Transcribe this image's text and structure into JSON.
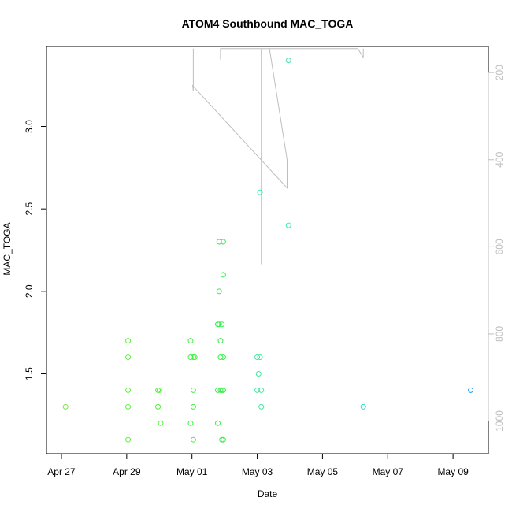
{
  "chart_data": {
    "type": "scatter",
    "title": "ATOM4 Southbound MAC_TOGA",
    "xlabel": "Date",
    "ylabel": "MAC_TOGA",
    "xlim": [
      "2017-04-26T13:00",
      "2017-05-10T02:00"
    ],
    "ylim": [
      1.015,
      3.485
    ],
    "y2lim": [
      1075,
      140
    ],
    "x_ticks": [
      {
        "date": "2017-04-27",
        "label": "Apr 27"
      },
      {
        "date": "2017-04-29",
        "label": "Apr 29"
      },
      {
        "date": "2017-05-01",
        "label": "May 01"
      },
      {
        "date": "2017-05-03",
        "label": "May 03"
      },
      {
        "date": "2017-05-05",
        "label": "May 05"
      },
      {
        "date": "2017-05-07",
        "label": "May 07"
      },
      {
        "date": "2017-05-09",
        "label": "May 09"
      }
    ],
    "y_ticks": [
      {
        "value": 1.5,
        "label": "1.5"
      },
      {
        "value": 2.0,
        "label": "2.0"
      },
      {
        "value": 2.5,
        "label": "2.5"
      },
      {
        "value": 3.0,
        "label": "3.0"
      }
    ],
    "y2_ticks": [
      {
        "value": 200,
        "label": "200"
      },
      {
        "value": 400,
        "label": "400"
      },
      {
        "value": 600,
        "label": "600"
      },
      {
        "value": 800,
        "label": "800"
      },
      {
        "value": 1000,
        "label": "1000"
      }
    ],
    "grid": false,
    "legend": "none",
    "colors": {
      "secondary_line": "#bebebe",
      "axis": "#000000",
      "secondary_axis": "#bebebe"
    },
    "points": [
      {
        "x": "2017-04-27T03:00",
        "y": 1.3,
        "color": "#7ee64f"
      },
      {
        "x": "2017-04-29T01:00",
        "y": 1.7,
        "color": "#5ff03c"
      },
      {
        "x": "2017-04-29T01:00",
        "y": 1.6,
        "color": "#5ff03c"
      },
      {
        "x": "2017-04-29T01:00",
        "y": 1.4,
        "color": "#5ff03c"
      },
      {
        "x": "2017-04-29T01:00",
        "y": 1.3,
        "color": "#5ff03c"
      },
      {
        "x": "2017-04-29T01:00",
        "y": 1.1,
        "color": "#5ff03c"
      },
      {
        "x": "2017-04-29T23:00",
        "y": 1.4,
        "color": "#4cf232"
      },
      {
        "x": "2017-04-30T00:00",
        "y": 1.4,
        "color": "#4cf232"
      },
      {
        "x": "2017-04-29T23:00",
        "y": 1.3,
        "color": "#4cf232"
      },
      {
        "x": "2017-04-30T01:00",
        "y": 1.2,
        "color": "#4cf232"
      },
      {
        "x": "2017-04-30T23:00",
        "y": 1.7,
        "color": "#3cf43c"
      },
      {
        "x": "2017-04-30T23:00",
        "y": 1.6,
        "color": "#3cf43c"
      },
      {
        "x": "2017-05-01T01:00",
        "y": 1.6,
        "color": "#3cf43c"
      },
      {
        "x": "2017-05-01T02:00",
        "y": 1.6,
        "color": "#3cf43c"
      },
      {
        "x": "2017-05-01T01:00",
        "y": 1.4,
        "color": "#3cf43c"
      },
      {
        "x": "2017-05-01T01:00",
        "y": 1.3,
        "color": "#3cf43c"
      },
      {
        "x": "2017-04-30T23:00",
        "y": 1.2,
        "color": "#3cf43c"
      },
      {
        "x": "2017-05-01T01:00",
        "y": 1.1,
        "color": "#3cf43c"
      },
      {
        "x": "2017-05-01T20:00",
        "y": 2.3,
        "color": "#32f048"
      },
      {
        "x": "2017-05-01T23:00",
        "y": 2.3,
        "color": "#32f048"
      },
      {
        "x": "2017-05-01T23:00",
        "y": 2.1,
        "color": "#32f048"
      },
      {
        "x": "2017-05-01T20:00",
        "y": 2.0,
        "color": "#32f048"
      },
      {
        "x": "2017-05-01T19:00",
        "y": 1.8,
        "color": "#32f048"
      },
      {
        "x": "2017-05-01T20:00",
        "y": 1.8,
        "color": "#32f048"
      },
      {
        "x": "2017-05-01T22:00",
        "y": 1.8,
        "color": "#32f048"
      },
      {
        "x": "2017-05-01T21:00",
        "y": 1.7,
        "color": "#32f048"
      },
      {
        "x": "2017-05-01T21:00",
        "y": 1.6,
        "color": "#32f048"
      },
      {
        "x": "2017-05-01T23:00",
        "y": 1.6,
        "color": "#32f048"
      },
      {
        "x": "2017-05-01T19:00",
        "y": 1.4,
        "color": "#32f048"
      },
      {
        "x": "2017-05-01T21:00",
        "y": 1.4,
        "color": "#32f048"
      },
      {
        "x": "2017-05-01T22:00",
        "y": 1.4,
        "color": "#32f048"
      },
      {
        "x": "2017-05-01T23:00",
        "y": 1.4,
        "color": "#32f048"
      },
      {
        "x": "2017-05-01T19:00",
        "y": 1.2,
        "color": "#32f048"
      },
      {
        "x": "2017-05-01T22:00",
        "y": 1.1,
        "color": "#32f048"
      },
      {
        "x": "2017-05-01T23:00",
        "y": 1.1,
        "color": "#32f048"
      },
      {
        "x": "2017-05-03T02:00",
        "y": 2.6,
        "color": "#3ceca0"
      },
      {
        "x": "2017-05-03T00:00",
        "y": 1.6,
        "color": "#3ceca0"
      },
      {
        "x": "2017-05-03T02:00",
        "y": 1.6,
        "color": "#3ceca0"
      },
      {
        "x": "2017-05-03T01:00",
        "y": 1.5,
        "color": "#3ceca0"
      },
      {
        "x": "2017-05-03T00:00",
        "y": 1.4,
        "color": "#3ceca0"
      },
      {
        "x": "2017-05-03T03:00",
        "y": 1.4,
        "color": "#3ceca0"
      },
      {
        "x": "2017-05-03T03:00",
        "y": 1.3,
        "color": "#3ceca0"
      },
      {
        "x": "2017-05-03T23:00",
        "y": 3.4,
        "color": "#3ce8b8"
      },
      {
        "x": "2017-05-03T23:00",
        "y": 2.4,
        "color": "#3ce8b8"
      },
      {
        "x": "2017-05-06T06:00",
        "y": 1.3,
        "color": "#28dcc8"
      },
      {
        "x": "2017-05-09T13:00",
        "y": 1.4,
        "color": "#1e96f0"
      }
    ],
    "secondary_line": [
      {
        "x": "2017-05-01T01:00",
        "y2": 145
      },
      {
        "x": "2017-05-01T01:00",
        "y2": 243
      },
      {
        "x": "2017-05-01T00:30",
        "y2": 230
      },
      {
        "x": "2017-05-03T22:00",
        "y2": 465
      },
      {
        "x": "2017-05-03T22:00",
        "y2": 400
      },
      {
        "x": "2017-05-03T09:00",
        "y2": 145
      },
      {
        "x": "2017-05-03T03:00",
        "y2": 145
      },
      {
        "x": "2017-05-03T03:00",
        "y2": 640
      },
      {
        "x": "2017-05-03T03:00",
        "y2": 145
      },
      {
        "x": "2017-05-01T21:00",
        "y2": 145
      },
      {
        "x": "2017-05-01T21:00",
        "y2": 170
      },
      {
        "x": "2017-05-01T21:00",
        "y2": 145
      },
      {
        "x": "2017-05-06T02:00",
        "y2": 145
      },
      {
        "x": "2017-05-06T06:00",
        "y2": 165
      },
      {
        "x": "2017-05-06T06:00",
        "y2": 145
      }
    ]
  }
}
